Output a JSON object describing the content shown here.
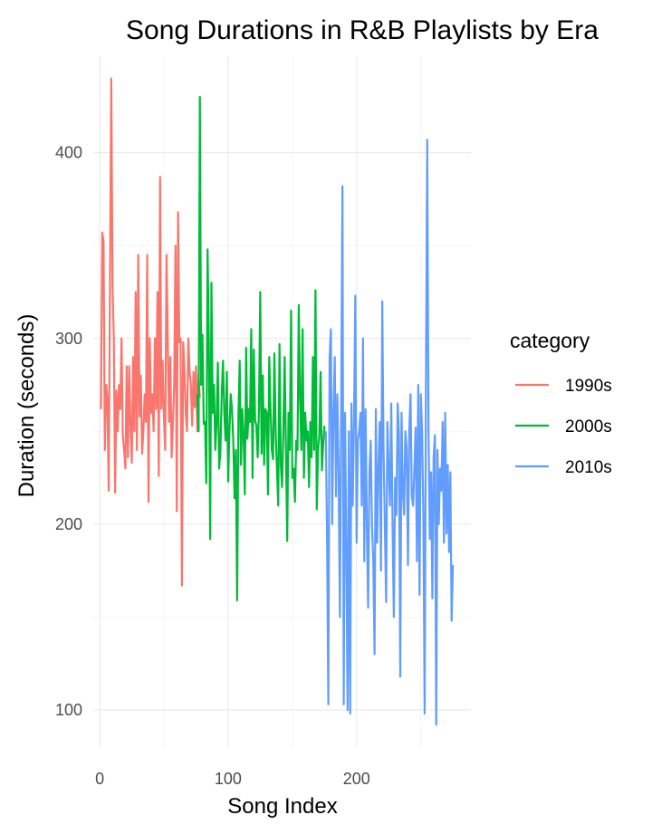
{
  "chart_data": {
    "type": "line",
    "title": "Song Durations in R&B Playlists by Era",
    "xlabel": "Song Index",
    "ylabel": "Duration (seconds)",
    "xlim": [
      -5,
      289
    ],
    "ylim": [
      80,
      452
    ],
    "x_ticks": [
      0,
      100,
      200
    ],
    "y_ticks": [
      100,
      200,
      300,
      400
    ],
    "x_minor_ticks": [
      50,
      150,
      250
    ],
    "y_minor_ticks": [
      150,
      250,
      350
    ],
    "grid": true,
    "legend": {
      "title": "category",
      "position": "right"
    },
    "series": [
      {
        "name": "1990s",
        "color": "#F8766D",
        "x": [
          1,
          2,
          3,
          4,
          5,
          6,
          7,
          8,
          9,
          10,
          11,
          12,
          13,
          14,
          15,
          16,
          17,
          18,
          19,
          20,
          21,
          22,
          23,
          24,
          25,
          26,
          27,
          28,
          29,
          30,
          31,
          32,
          33,
          34,
          35,
          36,
          37,
          38,
          39,
          40,
          41,
          42,
          43,
          44,
          45,
          46,
          47,
          48,
          49,
          50,
          51,
          52,
          53,
          54,
          55,
          56,
          57,
          58,
          59,
          60,
          61,
          62,
          63,
          64,
          65,
          66,
          67,
          68,
          69,
          70,
          71,
          72,
          73,
          74,
          75,
          76,
          77,
          78
        ],
        "values": [
          262,
          357,
          352,
          240,
          275,
          268,
          218,
          330,
          440,
          328,
          300,
          217,
          272,
          250,
          275,
          262,
          300,
          248,
          240,
          230,
          285,
          236,
          285,
          252,
          233,
          290,
          250,
          325,
          240,
          345,
          258,
          280,
          238,
          250,
          270,
          255,
          345,
          212,
          300,
          260,
          270,
          250,
          300,
          262,
          325,
          226,
          387,
          262,
          288,
          257,
          240,
          345,
          300,
          255,
          290,
          236,
          255,
          275,
          350,
          207,
          368,
          298,
          300,
          167,
          298,
          282,
          260,
          250,
          300,
          282,
          275,
          253,
          282,
          263,
          285,
          250,
          280,
          268
        ]
      },
      {
        "name": "2000s",
        "color": "#00BA38",
        "x": [
          76,
          77,
          78,
          79,
          80,
          81,
          82,
          83,
          84,
          85,
          86,
          87,
          88,
          89,
          90,
          91,
          92,
          93,
          94,
          95,
          96,
          97,
          98,
          99,
          100,
          101,
          102,
          103,
          104,
          105,
          106,
          107,
          108,
          109,
          110,
          111,
          112,
          113,
          114,
          115,
          116,
          117,
          118,
          119,
          120,
          121,
          122,
          123,
          124,
          125,
          126,
          127,
          128,
          129,
          130,
          131,
          132,
          133,
          134,
          135,
          136,
          137,
          138,
          139,
          140,
          141,
          142,
          143,
          144,
          145,
          146,
          147,
          148,
          149,
          150,
          151,
          152,
          153,
          154,
          155,
          156,
          157,
          158,
          159,
          160,
          161,
          162,
          163,
          164,
          165,
          166,
          167,
          168,
          169,
          170,
          171,
          172,
          173,
          174,
          175
        ],
        "values": [
          270,
          250,
          430,
          275,
          302,
          254,
          255,
          222,
          348,
          298,
          192,
          330,
          260,
          275,
          240,
          255,
          287,
          230,
          240,
          270,
          288,
          260,
          245,
          282,
          223,
          250,
          270,
          262,
          245,
          214,
          240,
          159,
          258,
          288,
          232,
          262,
          248,
          216,
          295,
          246,
          262,
          255,
          305,
          225,
          294,
          256,
          253,
          236,
          262,
          325,
          238,
          280,
          232,
          262,
          260,
          216,
          290,
          262,
          240,
          235,
          292,
          250,
          230,
          210,
          297,
          232,
          220,
          250,
          290,
          240,
          191,
          260,
          240,
          315,
          225,
          230,
          212,
          245,
          240,
          318,
          268,
          240,
          305,
          225,
          260,
          245,
          250,
          220,
          255,
          236,
          290,
          240,
          326,
          208,
          240,
          248,
          282,
          229,
          243,
          253
        ]
      },
      {
        "name": "2010s",
        "color": "#619CFF",
        "x": [
          176,
          177,
          178,
          179,
          180,
          181,
          182,
          183,
          184,
          185,
          186,
          187,
          188,
          189,
          190,
          191,
          192,
          193,
          194,
          195,
          196,
          197,
          198,
          199,
          200,
          201,
          202,
          203,
          204,
          205,
          206,
          207,
          208,
          209,
          210,
          211,
          212,
          213,
          214,
          215,
          216,
          217,
          218,
          219,
          220,
          221,
          222,
          223,
          224,
          225,
          226,
          227,
          228,
          229,
          230,
          231,
          232,
          233,
          234,
          235,
          236,
          237,
          238,
          239,
          240,
          241,
          242,
          243,
          244,
          245,
          246,
          247,
          248,
          249,
          250,
          251,
          252,
          253,
          254,
          255,
          256,
          257,
          258,
          259,
          260,
          261,
          262,
          263,
          264,
          265,
          266,
          267,
          268,
          269,
          270,
          271,
          272,
          273,
          274,
          275
        ],
        "values": [
          250,
          195,
          103,
          290,
          305,
          200,
          260,
          290,
          215,
          270,
          230,
          150,
          260,
          382,
          103,
          260,
          190,
          100,
          250,
          98,
          265,
          210,
          255,
          323,
          190,
          245,
          250,
          260,
          210,
          300,
          180,
          262,
          200,
          155,
          228,
          245,
          200,
          180,
          130,
          262,
          190,
          230,
          255,
          175,
          320,
          240,
          200,
          158,
          255,
          230,
          210,
          265,
          200,
          150,
          225,
          205,
          265,
          248,
          118,
          260,
          218,
          205,
          250,
          240,
          178,
          250,
          270,
          215,
          210,
          230,
          252,
          180,
          275,
          162,
          270,
          250,
          205,
          98,
          275,
          407,
          250,
          192,
          228,
          160,
          236,
          248,
          92,
          240,
          200,
          230,
          218,
          255,
          190,
          260,
          195,
          232,
          185,
          228,
          148,
          178
        ]
      }
    ]
  }
}
